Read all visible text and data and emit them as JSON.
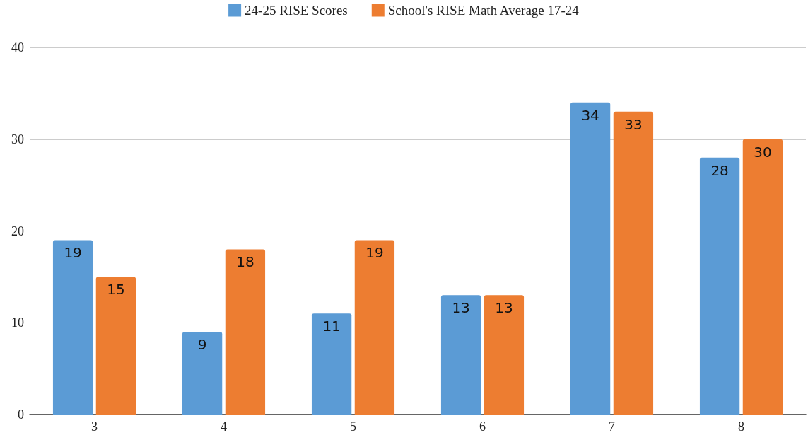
{
  "chart_data": {
    "type": "bar",
    "categories": [
      "3",
      "4",
      "5",
      "6",
      "7",
      "8"
    ],
    "series": [
      {
        "name": "24-25 RISE Scores",
        "color": "#5b9bd5",
        "values": [
          19,
          9,
          11,
          13,
          34,
          28
        ]
      },
      {
        "name": "School's RISE Math Average 17-24",
        "color": "#ed7d31",
        "values": [
          15,
          18,
          19,
          13,
          33,
          30
        ]
      }
    ],
    "ylim": [
      0,
      40
    ],
    "yticks": [
      0,
      10,
      20,
      30,
      40
    ],
    "grid": "y",
    "legend": "top",
    "data_labels": true
  }
}
